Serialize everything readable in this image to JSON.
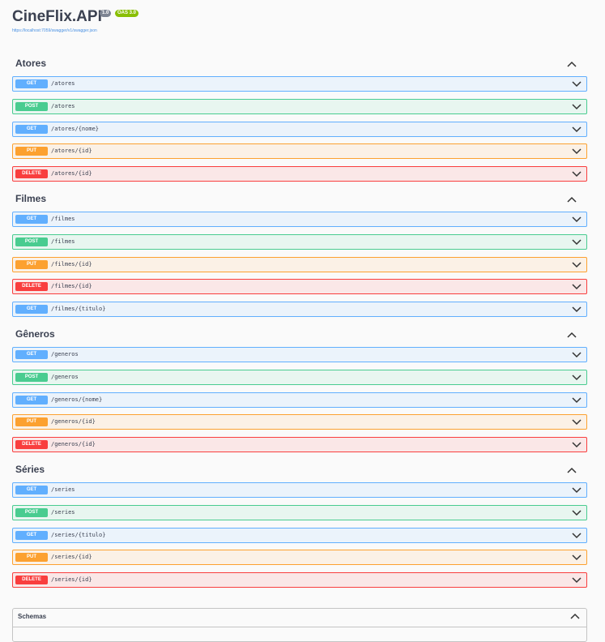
{
  "header": {
    "title": "CineFlix.API",
    "version": "1.0",
    "oas": "OAS 3.0",
    "url": "https://localhost:7059/swagger/v1/swagger.json"
  },
  "sections": [
    {
      "name": "Atores",
      "operations": [
        {
          "method": "GET",
          "path": "/atores"
        },
        {
          "method": "POST",
          "path": "/atores"
        },
        {
          "method": "GET",
          "path": "/atores/{nome}"
        },
        {
          "method": "PUT",
          "path": "/atores/{id}"
        },
        {
          "method": "DELETE",
          "path": "/atores/{id}"
        }
      ]
    },
    {
      "name": "Filmes",
      "operations": [
        {
          "method": "GET",
          "path": "/filmes"
        },
        {
          "method": "POST",
          "path": "/filmes"
        },
        {
          "method": "PUT",
          "path": "/filmes/{id}"
        },
        {
          "method": "DELETE",
          "path": "/filmes/{id}"
        },
        {
          "method": "GET",
          "path": "/filmes/{titulo}"
        }
      ]
    },
    {
      "name": "Gêneros",
      "operations": [
        {
          "method": "GET",
          "path": "/generos"
        },
        {
          "method": "POST",
          "path": "/generos"
        },
        {
          "method": "GET",
          "path": "/generos/{nome}"
        },
        {
          "method": "PUT",
          "path": "/generos/{id}"
        },
        {
          "method": "DELETE",
          "path": "/generos/{id}"
        }
      ]
    },
    {
      "name": "Séries",
      "operations": [
        {
          "method": "GET",
          "path": "/series"
        },
        {
          "method": "POST",
          "path": "/series"
        },
        {
          "method": "GET",
          "path": "/series/{titulo}"
        },
        {
          "method": "PUT",
          "path": "/series/{id}"
        },
        {
          "method": "DELETE",
          "path": "/series/{id}"
        }
      ]
    }
  ],
  "schemas": {
    "title": "Schemas"
  }
}
